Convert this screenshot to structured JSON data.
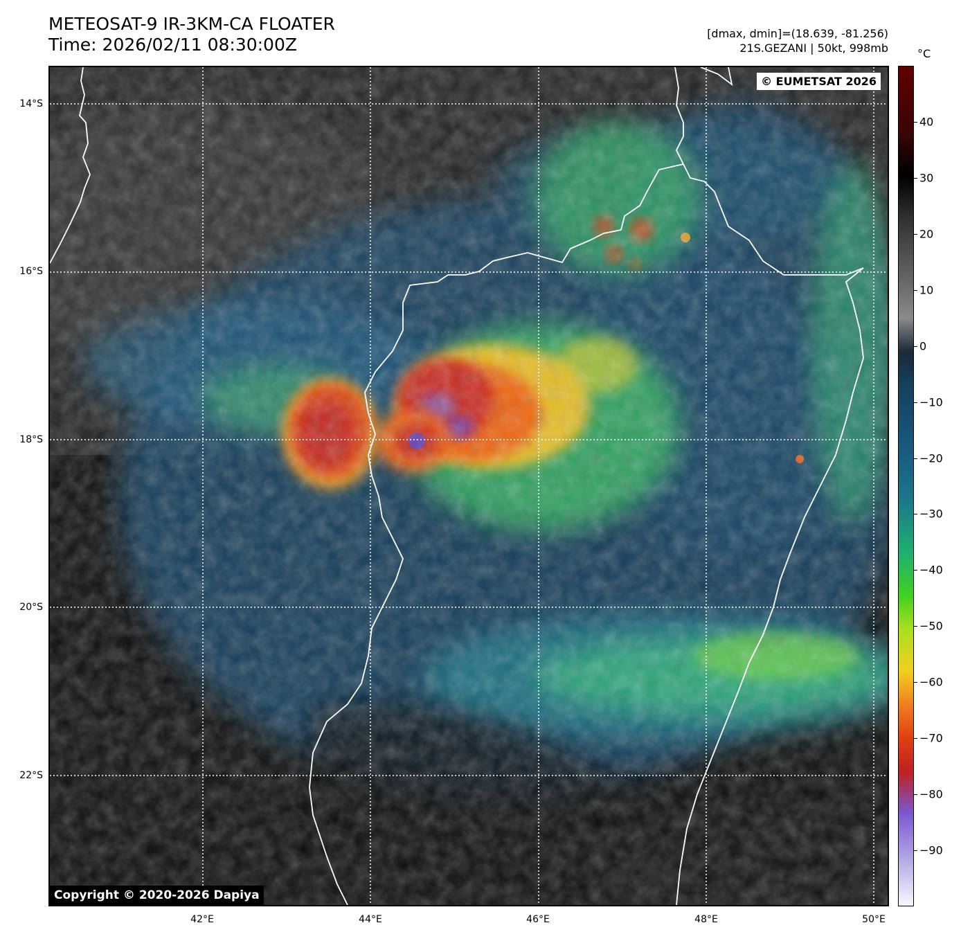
{
  "title": {
    "line1": "METEOSAT-9 IR-3KM-CA FLOATER",
    "line2": "Time: 2026/02/11 08:30:00Z"
  },
  "meta": {
    "range": "[dmax, dmin]=(18.639, -81.256)",
    "storm": "21S.GEZANI | 50kt, 998mb"
  },
  "map": {
    "lat_labels": [
      "14°S",
      "16°S",
      "18°S",
      "20°S",
      "22°S"
    ],
    "lon_labels": [
      "42°E",
      "44°E",
      "46°E",
      "48°E",
      "50°E"
    ],
    "lat_values": [
      -14,
      -16,
      -18,
      -20,
      -22
    ],
    "lon_values": [
      42,
      44,
      46,
      48,
      50
    ],
    "lon_range": [
      40.15,
      50.18
    ],
    "lat_range": [
      -23.55,
      -13.55
    ],
    "coastline_color": "#ffffff",
    "gridline_color": "#ffffff",
    "badge": "© EUMETSAT 2026",
    "copyright": "Copyright © 2020-2026 Dapiya"
  },
  "colorbar": {
    "unit": "°C",
    "ticks": [
      "40",
      "30",
      "20",
      "10",
      "0",
      "−10",
      "−20",
      "−30",
      "−40",
      "−50",
      "−60",
      "−70",
      "−80",
      "−90"
    ],
    "tick_values": [
      40,
      30,
      20,
      10,
      0,
      -10,
      -20,
      -30,
      -40,
      -50,
      -60,
      -70,
      -80,
      -90
    ],
    "range": [
      -100,
      50
    ],
    "colors": [
      "#f8f8ff",
      "#9a90e0",
      "#6a40c0",
      "#c02020",
      "#f06010",
      "#f0c020",
      "#a8e020",
      "#40d020",
      "#20b070",
      "#1b7a8a",
      "#1a5a80",
      "#15405e",
      "#2a2a2a",
      "#8a8a8a",
      "#707070",
      "#303030",
      "#000000",
      "#6a0a0a",
      "#600000"
    ]
  }
}
